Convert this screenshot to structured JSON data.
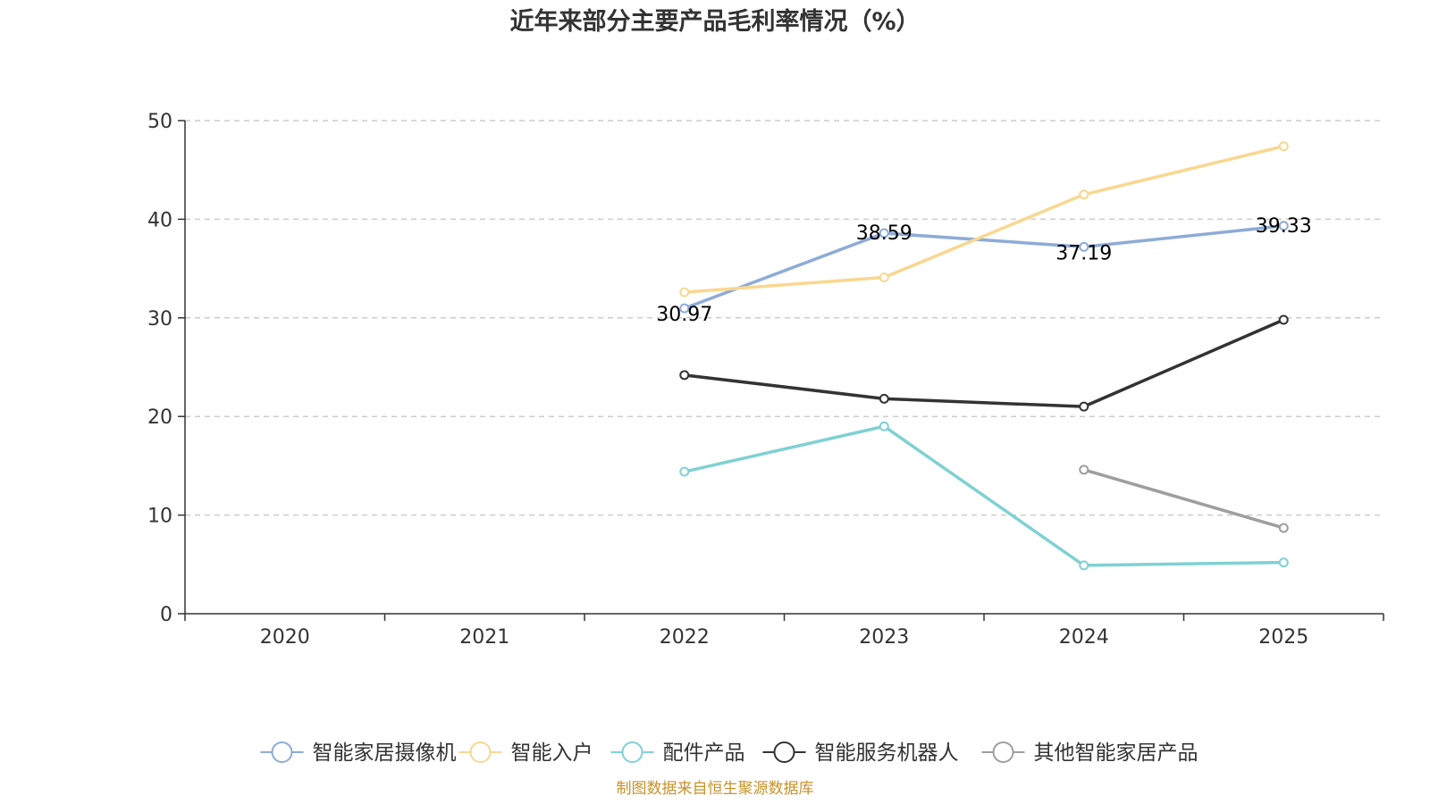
{
  "chart_data": {
    "type": "line",
    "title": "近年来部分主要产品毛利率情况（%）",
    "categories": [
      "2020",
      "2021",
      "2022",
      "2023",
      "2024",
      "2025"
    ],
    "ylim": [
      0,
      50
    ],
    "yticks": [
      "0",
      "10",
      "20",
      "30",
      "40",
      "50"
    ],
    "grid": true,
    "legend_position": "bottom",
    "series": [
      {
        "name": "智能家居摄像机",
        "color": "#8eabd8",
        "values": [
          null,
          null,
          30.97,
          38.59,
          37.19,
          39.33
        ],
        "labels": [
          null,
          null,
          "30.97",
          "38.59",
          "37.19",
          "39.33"
        ]
      },
      {
        "name": "智能入户",
        "color": "#f9d78f",
        "values": [
          null,
          null,
          32.6,
          34.1,
          42.5,
          47.4
        ]
      },
      {
        "name": "配件产品",
        "color": "#7fd1d3",
        "values": [
          null,
          null,
          14.4,
          19.0,
          4.9,
          5.2
        ]
      },
      {
        "name": "智能服务机器人",
        "color": "#333333",
        "values": [
          null,
          null,
          24.2,
          21.8,
          21.0,
          29.8
        ]
      },
      {
        "name": "其他智能家居产品",
        "color": "#9e9e9e",
        "values": [
          null,
          null,
          null,
          null,
          14.6,
          8.7
        ]
      }
    ],
    "source": "制图数据来自恒生聚源数据库"
  }
}
